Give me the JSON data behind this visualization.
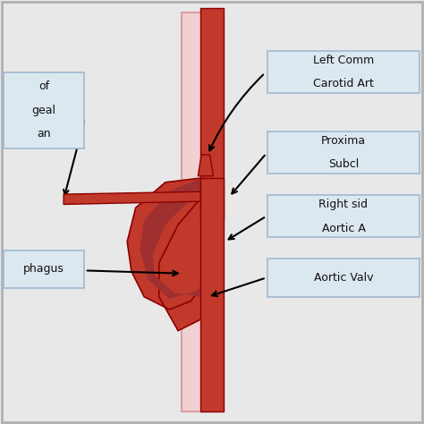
{
  "bg_color": "#e8e8e8",
  "border_color": "#b0b0b0",
  "aorta_color": "#c0392b",
  "aorta_light": "#e8a0a0",
  "esophagus_color": "#e8c0c0",
  "label_bg": "#dce8f0",
  "label_border": "#a0b8d0",
  "label_text_color": "#111111",
  "labels": {
    "left_box": [
      "of",
      "geal",
      "an"
    ],
    "esophagus": "phagus",
    "left_comm": [
      "Left Comm",
      "Carotid Art"
    ],
    "proximal": [
      "Proxima",
      "Subcl"
    ],
    "right_side": [
      "Right sid",
      "Aortic A"
    ],
    "aortic_valve": "Aortic Valv"
  },
  "figsize": [
    4.74,
    4.74
  ],
  "dpi": 100
}
